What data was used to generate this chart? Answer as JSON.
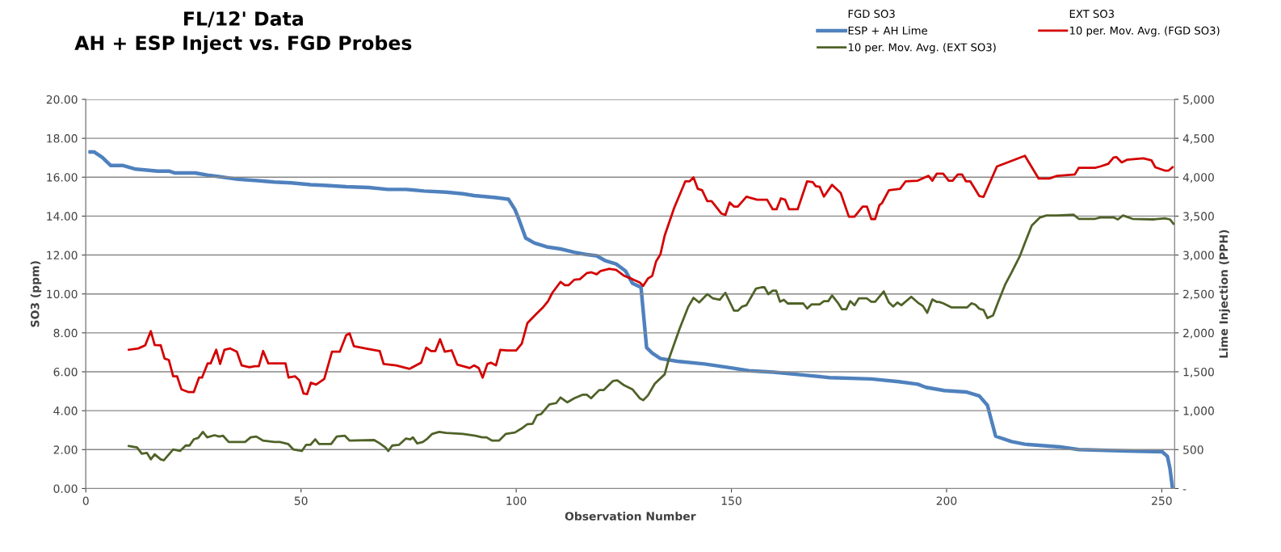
{
  "chart_data": {
    "type": "line",
    "title": "FL/12' Data\nAH + ESP Inject vs. FGD Probes",
    "xlabel": "Observation Number",
    "ylabel": "SO3 (ppm)",
    "y2label": "Lime Injection (PPH)",
    "annotations": [
      "FGD SO3",
      "EXT SO3"
    ],
    "xlim": [
      0,
      253
    ],
    "xticks": [
      0,
      50,
      100,
      150,
      200,
      250
    ],
    "ylim": [
      0,
      20
    ],
    "yticks": [
      {
        "value": 0,
        "label": "0.00"
      },
      {
        "value": 2,
        "label": "2.00"
      },
      {
        "value": 4,
        "label": "4.00"
      },
      {
        "value": 6,
        "label": "6.00"
      },
      {
        "value": 8,
        "label": "8.00"
      },
      {
        "value": 10,
        "label": "10.00"
      },
      {
        "value": 12,
        "label": "12.00"
      },
      {
        "value": 14,
        "label": "14.00"
      },
      {
        "value": 16,
        "label": "16.00"
      },
      {
        "value": 18,
        "label": "18.00"
      },
      {
        "value": 20,
        "label": "20.00"
      }
    ],
    "y2lim": [
      0,
      5000
    ],
    "y2ticks": [
      {
        "value": 0,
        "label": "-"
      },
      500,
      {
        "value": 1000,
        "label": "1,000"
      },
      {
        "value": 1500,
        "label": "1,500"
      },
      {
        "value": 2000,
        "label": "2,000"
      },
      {
        "value": 2500,
        "label": "2,500"
      },
      {
        "value": 3000,
        "label": "3,000"
      },
      {
        "value": 3500,
        "label": "3,500"
      },
      {
        "value": 4000,
        "label": "4,000"
      },
      {
        "value": 4500,
        "label": "4,500"
      },
      {
        "value": 5000,
        "label": "5,000"
      }
    ],
    "grid": "y",
    "legend": "top right",
    "marker": "none",
    "line_style": "solid",
    "series": [
      {
        "name": "ESP + AH Lime",
        "color": "#4f81bd",
        "axis": "y2",
        "x": [
          1,
          1.9,
          3.8,
          5.8,
          8.7,
          11.6,
          14.2,
          16.7,
          19.3,
          20.6,
          25.4,
          28.3,
          30.9,
          35.4,
          39.9,
          43.8,
          47.7,
          52.2,
          56.0,
          60.5,
          65.7,
          70.2,
          74.4,
          78.6,
          83.7,
          87.6,
          90.2,
          95.3,
          98.2,
          99.7,
          100.6,
          102.2,
          104.2,
          107.1,
          110.3,
          113.5,
          116.1,
          118.7,
          120.6,
          123.2,
          125.4,
          127.0,
          129.0,
          130.3,
          131.6,
          133.5,
          137.4,
          143.8,
          150.2,
          154.1,
          159.9,
          166.4,
          172.8,
          182.5,
          188.9,
          193.3,
          195.2,
          199.5,
          204.5,
          207.6,
          209.5,
          210.4,
          211.4,
          215.1,
          218.2,
          226.4,
          230.7,
          241.9,
          250.1,
          251.3,
          251.9,
          252.5
        ],
        "values": [
          4325,
          4325,
          4255,
          4150,
          4150,
          4103,
          4090,
          4078,
          4078,
          4055,
          4055,
          4026,
          4008,
          3973,
          3956,
          3938,
          3928,
          3903,
          3893,
          3878,
          3868,
          3843,
          3843,
          3822,
          3808,
          3787,
          3763,
          3738,
          3717,
          3586,
          3463,
          3218,
          3155,
          3105,
          3078,
          3035,
          3008,
          2990,
          2930,
          2885,
          2795,
          2638,
          2585,
          1810,
          1740,
          1670,
          1635,
          1600,
          1548,
          1513,
          1495,
          1460,
          1425,
          1408,
          1373,
          1340,
          1300,
          1259,
          1241,
          1190,
          1069,
          879,
          672,
          603,
          569,
          534,
          500,
          483,
          472,
          414,
          259,
          0
        ]
      },
      {
        "name": "10 per. Mov. Avg. (EXT SO3)",
        "color": "#4f6228",
        "x": [
          10,
          11.9,
          13,
          14.2,
          15.1,
          16,
          17.4,
          18.1,
          20.3,
          21.9,
          23.2,
          24.1,
          25.1,
          26.1,
          27.2,
          28.2,
          29.9,
          31,
          31.9,
          33.2,
          37.0,
          38.3,
          39.6,
          41.2,
          43.8,
          45.1,
          47.0,
          48.2,
          50.2,
          51.2,
          52.2,
          53.3,
          54.2,
          57.0,
          58.3,
          60.2,
          61.3,
          67,
          68.3,
          69.6,
          70.3,
          71.2,
          72.8,
          74.4,
          75.4,
          76,
          77,
          78.3,
          79.4,
          80.5,
          82.1,
          83.7,
          87.6,
          90.5,
          92.1,
          93.1,
          94.4,
          96.0,
          97.6,
          99.7,
          101.3,
          102.6,
          103.8,
          104.8,
          105.8,
          107.7,
          109.3,
          110.3,
          111.9,
          113.5,
          115.4,
          116.4,
          117.4,
          119.3,
          120.3,
          122.5,
          123.5,
          125.1,
          127.0,
          128.7,
          129.5,
          130.6,
          132.2,
          134.5,
          135.4,
          138.0,
          140.0,
          141.2,
          142.5,
          144.4,
          145.7,
          147.3,
          148.6,
          150.6,
          151.5,
          152.5,
          153.5,
          155.7,
          157.0,
          157.7,
          158.6,
          159.6,
          160.4,
          161.3,
          162.2,
          163.1,
          166.7,
          167.6,
          168.6,
          170.5,
          171.5,
          172.5,
          173.4,
          174.7,
          175.7,
          176.7,
          177.6,
          178.6,
          179.6,
          181.5,
          182.5,
          183.4,
          185.4,
          186.6,
          187.6,
          188.6,
          189.5,
          191.8,
          193.3,
          194.5,
          195.5,
          196.7,
          197.7,
          198.3,
          199.2,
          201.1,
          204.8,
          205.8,
          206.7,
          207.6,
          208.6,
          209.5,
          210.8,
          212.0,
          213.6,
          215.1,
          217.0,
          218.2,
          219.8,
          221.7,
          223.2,
          225.7,
          229.5,
          230.7,
          234.5,
          235.7,
          238.8,
          239.8,
          241.0,
          243.2,
          248.2,
          250.7,
          251.9,
          252.7
        ],
        "values": [
          2.18,
          2.11,
          1.79,
          1.83,
          1.5,
          1.76,
          1.5,
          1.45,
          2.01,
          1.93,
          2.21,
          2.21,
          2.53,
          2.6,
          2.91,
          2.63,
          2.74,
          2.67,
          2.71,
          2.39,
          2.39,
          2.63,
          2.67,
          2.46,
          2.39,
          2.39,
          2.29,
          2.01,
          1.93,
          2.25,
          2.25,
          2.53,
          2.29,
          2.29,
          2.67,
          2.71,
          2.46,
          2.49,
          2.32,
          2.11,
          1.93,
          2.21,
          2.25,
          2.57,
          2.53,
          2.63,
          2.32,
          2.39,
          2.57,
          2.81,
          2.91,
          2.86,
          2.81,
          2.71,
          2.63,
          2.63,
          2.46,
          2.46,
          2.81,
          2.88,
          3.09,
          3.31,
          3.33,
          3.76,
          3.83,
          4.32,
          4.39,
          4.68,
          4.43,
          4.64,
          4.82,
          4.82,
          4.64,
          5.06,
          5.06,
          5.53,
          5.56,
          5.3,
          5.1,
          4.64,
          4.54,
          4.78,
          5.39,
          5.87,
          6.61,
          8.23,
          9.35,
          9.8,
          9.56,
          9.99,
          9.77,
          9.7,
          10.06,
          9.14,
          9.14,
          9.35,
          9.42,
          10.27,
          10.34,
          10.34,
          9.99,
          10.17,
          10.17,
          9.6,
          9.7,
          9.51,
          9.51,
          9.25,
          9.46,
          9.46,
          9.63,
          9.63,
          9.92,
          9.56,
          9.21,
          9.21,
          9.63,
          9.42,
          9.77,
          9.77,
          9.6,
          9.6,
          10.13,
          9.56,
          9.35,
          9.56,
          9.42,
          9.85,
          9.56,
          9.38,
          9.03,
          9.72,
          9.59,
          9.59,
          9.52,
          9.31,
          9.31,
          9.52,
          9.45,
          9.24,
          9.17,
          8.76,
          8.9,
          9.59,
          10.48,
          11.1,
          11.93,
          12.62,
          13.52,
          13.93,
          14.03,
          14.03,
          14.07,
          13.86,
          13.86,
          13.93,
          13.93,
          13.83,
          14.03,
          13.86,
          13.83,
          13.89,
          13.83,
          13.61
        ]
      },
      {
        "name": "10 per. Mov. Avg. (FGD SO3)",
        "color": "#d40000",
        "x": [
          10,
          12.2,
          13.8,
          15.1,
          16,
          17.4,
          18.3,
          19.3,
          20.3,
          21.2,
          22.2,
          23.8,
          25.1,
          26.3,
          27,
          28.3,
          29,
          30.3,
          31.2,
          32.2,
          33.5,
          35.1,
          36.2,
          38,
          39.3,
          40.2,
          41.2,
          42.4,
          43.8,
          45.1,
          46.4,
          47.1,
          48.6,
          49.6,
          50.6,
          51.4,
          52.3,
          53.5,
          55.4,
          57.2,
          59,
          60.5,
          61.3,
          62.3,
          65.7,
          68.3,
          69.2,
          72.1,
          75.2,
          77.9,
          79.1,
          80.2,
          81.2,
          82.3,
          83.4,
          85,
          86.3,
          89.2,
          90.2,
          91.3,
          92.2,
          93.3,
          94.1,
          95.3,
          96.3,
          97.9,
          100,
          101.3,
          102.6,
          104.8,
          106.1,
          107.4,
          108.4,
          110.3,
          111.3,
          112.2,
          113.5,
          114.8,
          116.4,
          117.5,
          118.7,
          119.6,
          121.6,
          123.2,
          125.1,
          127.0,
          128.7,
          129.5,
          130.6,
          131.6,
          132.5,
          133.5,
          134.5,
          136.7,
          138.3,
          139.3,
          140.3,
          141.2,
          142.2,
          143.2,
          144.4,
          145.4,
          147.7,
          148.6,
          149.6,
          150.6,
          151.5,
          153.5,
          156.0,
          158.3,
          159.6,
          160.5,
          161.5,
          162.5,
          163.4,
          165.4,
          167.6,
          168.9,
          169.6,
          170.5,
          171.5,
          173.4,
          175.4,
          177.3,
          178.6,
          180.5,
          181.5,
          182.5,
          183.4,
          184.4,
          185.0,
          186.6,
          189.2,
          190.5,
          193.3,
          195.8,
          196.7,
          197.7,
          199.2,
          200.5,
          201.4,
          202.6,
          203.6,
          204.5,
          205.5,
          207.6,
          208.6,
          211.7,
          218.2,
          221.4,
          223.9,
          225.7,
          229.8,
          230.7,
          234.5,
          235.7,
          237.6,
          238.8,
          239.5,
          240.7,
          242.0,
          245.7,
          247.6,
          248.5,
          250.7,
          251.6,
          252.5
        ],
        "values": [
          7.13,
          7.2,
          7.36,
          8.09,
          7.38,
          7.36,
          6.68,
          6.6,
          5.77,
          5.77,
          5.1,
          4.96,
          4.96,
          5.7,
          5.7,
          6.43,
          6.43,
          7.13,
          6.4,
          7.13,
          7.2,
          7.03,
          6.33,
          6.23,
          6.29,
          6.29,
          7.07,
          6.43,
          6.43,
          6.43,
          6.43,
          5.7,
          5.77,
          5.56,
          4.88,
          4.85,
          5.44,
          5.34,
          5.63,
          7.03,
          7.03,
          7.88,
          7.97,
          7.31,
          7.17,
          7.06,
          6.4,
          6.33,
          6.15,
          6.47,
          7.24,
          7.06,
          7.06,
          7.67,
          7.03,
          7.1,
          6.37,
          6.19,
          6.33,
          6.19,
          5.7,
          6.4,
          6.47,
          6.33,
          7.13,
          7.1,
          7.1,
          7.45,
          8.5,
          9.0,
          9.28,
          9.63,
          10.06,
          10.62,
          10.45,
          10.45,
          10.73,
          10.76,
          11.07,
          11.11,
          11.01,
          11.18,
          11.29,
          11.24,
          10.93,
          10.76,
          10.59,
          10.41,
          10.79,
          10.93,
          11.67,
          12.03,
          13.0,
          14.42,
          15.26,
          15.79,
          15.79,
          15.99,
          15.4,
          15.33,
          14.77,
          14.77,
          14.13,
          14.06,
          14.7,
          14.49,
          14.49,
          15.0,
          14.84,
          14.84,
          14.35,
          14.35,
          14.91,
          14.84,
          14.35,
          14.35,
          15.79,
          15.75,
          15.54,
          15.51,
          15.0,
          15.61,
          15.19,
          13.97,
          13.97,
          14.49,
          14.49,
          13.85,
          13.85,
          14.56,
          14.67,
          15.33,
          15.4,
          15.79,
          15.82,
          16.07,
          15.82,
          16.18,
          16.18,
          15.82,
          15.82,
          16.14,
          16.14,
          15.79,
          15.79,
          15.03,
          14.99,
          16.55,
          17.1,
          15.93,
          15.93,
          16.07,
          16.14,
          16.48,
          16.48,
          16.55,
          16.69,
          17.01,
          17.03,
          16.76,
          16.9,
          16.97,
          16.87,
          16.51,
          16.34,
          16.34,
          16.51
        ]
      }
    ]
  }
}
